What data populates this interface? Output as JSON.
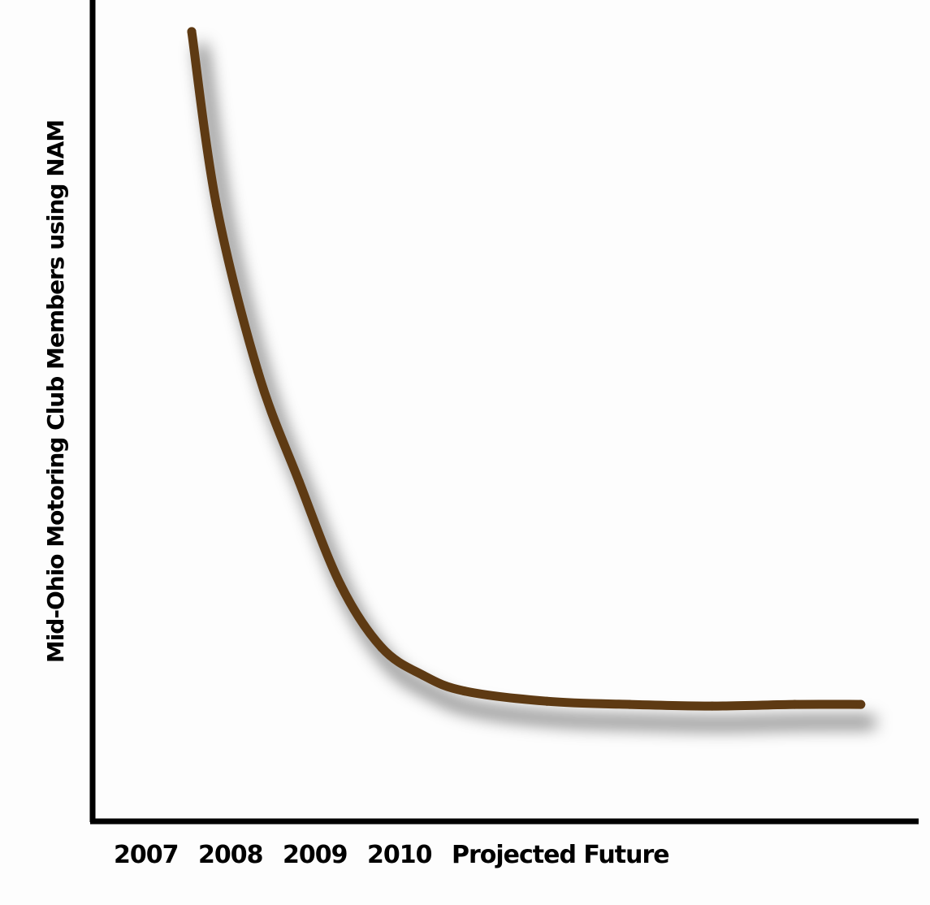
{
  "chart_data": {
    "type": "line",
    "title": "",
    "xlabel": "",
    "ylabel": "Mid-Ohio Motoring Club Members using NAM",
    "categories": [
      "2007",
      "2008",
      "2009",
      "2010",
      "Projected Future"
    ],
    "series": [
      {
        "x": [
          0.7,
          1.0,
          1.5,
          2.0,
          2.5,
          3.0,
          3.5,
          4.0,
          5.0,
          6.0,
          7.0,
          8.0,
          8.8
        ],
        "values": [
          100,
          78,
          57,
          43,
          30,
          22,
          18.5,
          16.5,
          15.2,
          14.8,
          14.6,
          14.8,
          14.8
        ]
      }
    ],
    "ylim": [
      0,
      104
    ],
    "xlim": [
      -0.5,
      9.5
    ],
    "grid": false,
    "legend": "none",
    "line_color": "#5e3a13"
  }
}
